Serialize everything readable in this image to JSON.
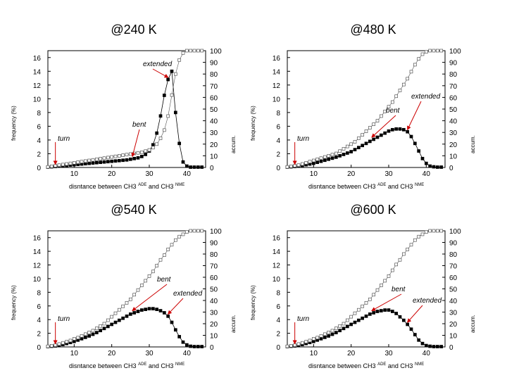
{
  "chart_data": [
    {
      "type": "line",
      "title": "@240 K",
      "xlabel": "disntance between CH3",
      "xlabel_sup1": "ADE",
      "xlabel_mid": "and CH3",
      "xlabel_sup2": "NME",
      "ylabel_left": "frequency (%)",
      "ylabel_right": "accum.",
      "xlim": [
        3,
        45
      ],
      "ylim_left": [
        0,
        17
      ],
      "ylim_right": [
        0,
        100
      ],
      "x_ticks": [
        10,
        20,
        30,
        40
      ],
      "y_left_ticks": [
        0,
        2,
        4,
        6,
        8,
        10,
        12,
        14,
        16
      ],
      "y_right_ticks": [
        0,
        10,
        20,
        30,
        40,
        50,
        60,
        70,
        80,
        90,
        100
      ],
      "series": [
        {
          "name": "frequency",
          "marker": "filled-square",
          "axis": "left",
          "x": [
            3,
            4,
            5,
            6,
            7,
            8,
            9,
            10,
            11,
            12,
            13,
            14,
            15,
            16,
            17,
            18,
            19,
            20,
            21,
            22,
            23,
            24,
            25,
            26,
            27,
            28,
            29,
            30,
            31,
            32,
            33,
            34,
            35,
            36,
            37,
            38,
            39,
            40,
            41,
            42,
            43,
            44
          ],
          "y": [
            0.05,
            0.1,
            0.15,
            0.2,
            0.25,
            0.3,
            0.35,
            0.4,
            0.45,
            0.5,
            0.55,
            0.6,
            0.65,
            0.7,
            0.75,
            0.8,
            0.85,
            0.9,
            0.95,
            1.0,
            1.05,
            1.1,
            1.2,
            1.3,
            1.4,
            1.6,
            1.9,
            2.4,
            3.3,
            5.0,
            7.5,
            10.5,
            12.8,
            14.0,
            8.0,
            3.5,
            0.8,
            0.2,
            0.05,
            0.05,
            0.05,
            0.05
          ]
        },
        {
          "name": "accumulated",
          "marker": "open-square",
          "axis": "right",
          "x": [
            3,
            4,
            5,
            6,
            7,
            8,
            9,
            10,
            11,
            12,
            13,
            14,
            15,
            16,
            17,
            18,
            19,
            20,
            21,
            22,
            23,
            24,
            25,
            26,
            27,
            28,
            29,
            30,
            31,
            32,
            33,
            34,
            35,
            36,
            37,
            38,
            39,
            40,
            41,
            42,
            43,
            44
          ],
          "y": [
            0.5,
            1,
            1.5,
            2,
            2.5,
            3,
            3.5,
            4,
            4.5,
            5,
            5.5,
            6,
            6.5,
            7,
            7.5,
            8,
            8.5,
            9,
            9.5,
            10,
            10.5,
            11,
            11.5,
            12,
            12.5,
            13,
            14,
            15,
            17,
            20,
            25,
            32,
            44,
            62,
            80,
            92,
            98,
            100,
            100,
            100,
            100,
            100
          ]
        }
      ],
      "annotations": [
        {
          "label": "turn",
          "x": 5
        },
        {
          "label": "bent",
          "x": 25.5
        },
        {
          "label": "extended",
          "x": 35
        }
      ]
    },
    {
      "type": "line",
      "title": "@480 K",
      "xlabel": "disntance between CH3",
      "xlabel_sup1": "ADE",
      "xlabel_mid": "and CH3",
      "xlabel_sup2": "NME",
      "ylabel_left": "frequency (%)",
      "ylabel_right": "accum.",
      "xlim": [
        3,
        45
      ],
      "ylim_left": [
        0,
        17
      ],
      "ylim_right": [
        0,
        100
      ],
      "x_ticks": [
        10,
        20,
        30,
        40
      ],
      "y_left_ticks": [
        0,
        2,
        4,
        6,
        8,
        10,
        12,
        14,
        16
      ],
      "y_right_ticks": [
        0,
        10,
        20,
        30,
        40,
        50,
        60,
        70,
        80,
        90,
        100
      ],
      "series": [
        {
          "name": "frequency",
          "marker": "filled-square",
          "axis": "left",
          "x": [
            3,
            4,
            5,
            6,
            7,
            8,
            9,
            10,
            11,
            12,
            13,
            14,
            15,
            16,
            17,
            18,
            19,
            20,
            21,
            22,
            23,
            24,
            25,
            26,
            27,
            28,
            29,
            30,
            31,
            32,
            33,
            34,
            35,
            36,
            37,
            38,
            39,
            40,
            41,
            42,
            43,
            44
          ],
          "y": [
            0.05,
            0.1,
            0.15,
            0.2,
            0.3,
            0.4,
            0.5,
            0.6,
            0.75,
            0.9,
            1.05,
            1.2,
            1.35,
            1.5,
            1.7,
            1.9,
            2.1,
            2.3,
            2.6,
            2.9,
            3.2,
            3.5,
            3.8,
            4.1,
            4.4,
            4.7,
            5.0,
            5.3,
            5.5,
            5.6,
            5.6,
            5.5,
            5.2,
            4.5,
            3.5,
            2.4,
            1.3,
            0.6,
            0.2,
            0.1,
            0.05,
            0.05
          ]
        },
        {
          "name": "accumulated",
          "marker": "open-square",
          "axis": "right",
          "x": [
            3,
            4,
            5,
            6,
            7,
            8,
            9,
            10,
            11,
            12,
            13,
            14,
            15,
            16,
            17,
            18,
            19,
            20,
            21,
            22,
            23,
            24,
            25,
            26,
            27,
            28,
            29,
            30,
            31,
            32,
            33,
            34,
            35,
            36,
            37,
            38,
            39,
            40,
            41,
            42,
            43,
            44
          ],
          "y": [
            0.5,
            1,
            1.5,
            2,
            3,
            4,
            5,
            6,
            7,
            8,
            9,
            10,
            11,
            12,
            14,
            16,
            18,
            20,
            22,
            25,
            28,
            31,
            34,
            37,
            40,
            44,
            48,
            52,
            56,
            61,
            66,
            71,
            76,
            82,
            88,
            93,
            97,
            99,
            100,
            100,
            100,
            100
          ]
        }
      ],
      "annotations": [
        {
          "label": "turn",
          "x": 5
        },
        {
          "label": "bent",
          "x": 25.5
        },
        {
          "label": "extended",
          "x": 35
        }
      ]
    },
    {
      "type": "line",
      "title": "@540 K",
      "xlabel": "disntance between CH3",
      "xlabel_sup1": "ADE",
      "xlabel_mid": "and CH3",
      "xlabel_sup2": "NME",
      "ylabel_left": "frequency (%)",
      "ylabel_right": "accum.",
      "xlim": [
        3,
        45
      ],
      "ylim_left": [
        0,
        17
      ],
      "ylim_right": [
        0,
        100
      ],
      "x_ticks": [
        10,
        20,
        30,
        40
      ],
      "y_left_ticks": [
        0,
        2,
        4,
        6,
        8,
        10,
        12,
        14,
        16
      ],
      "y_right_ticks": [
        0,
        10,
        20,
        30,
        40,
        50,
        60,
        70,
        80,
        90,
        100
      ],
      "series": [
        {
          "name": "frequency",
          "marker": "filled-square",
          "axis": "left",
          "x": [
            3,
            4,
            5,
            6,
            7,
            8,
            9,
            10,
            11,
            12,
            13,
            14,
            15,
            16,
            17,
            18,
            19,
            20,
            21,
            22,
            23,
            24,
            25,
            26,
            27,
            28,
            29,
            30,
            31,
            32,
            33,
            34,
            35,
            36,
            37,
            38,
            39,
            40,
            41,
            42,
            43,
            44
          ],
          "y": [
            0.05,
            0.1,
            0.15,
            0.25,
            0.35,
            0.5,
            0.65,
            0.8,
            1.0,
            1.2,
            1.4,
            1.6,
            1.85,
            2.1,
            2.4,
            2.7,
            3.0,
            3.3,
            3.6,
            3.9,
            4.2,
            4.5,
            4.8,
            5.0,
            5.2,
            5.4,
            5.5,
            5.6,
            5.6,
            5.5,
            5.3,
            5.0,
            4.5,
            3.6,
            2.5,
            1.5,
            0.7,
            0.3,
            0.1,
            0.05,
            0.05,
            0.05
          ]
        },
        {
          "name": "accumulated",
          "marker": "open-square",
          "axis": "right",
          "x": [
            3,
            4,
            5,
            6,
            7,
            8,
            9,
            10,
            11,
            12,
            13,
            14,
            15,
            16,
            17,
            18,
            19,
            20,
            21,
            22,
            23,
            24,
            25,
            26,
            27,
            28,
            29,
            30,
            31,
            32,
            33,
            34,
            35,
            36,
            37,
            38,
            39,
            40,
            41,
            42,
            43,
            44
          ],
          "y": [
            0.5,
            1,
            1.5,
            2.5,
            3.5,
            4.5,
            5.5,
            7,
            8,
            9.5,
            11,
            12.5,
            14,
            16,
            18,
            20,
            23,
            26,
            29,
            32,
            35,
            38,
            41,
            45,
            49,
            53,
            57,
            61,
            65,
            70,
            75,
            79,
            84,
            88,
            92,
            95,
            97,
            99,
            100,
            100,
            100,
            100
          ]
        }
      ],
      "annotations": [
        {
          "label": "turn",
          "x": 5
        },
        {
          "label": "bent",
          "x": 25.5
        },
        {
          "label": "extended",
          "x": 35
        }
      ]
    },
    {
      "type": "line",
      "title": "@600 K",
      "xlabel": "disntance between CH3",
      "xlabel_sup1": "ADE",
      "xlabel_mid": "and CH3",
      "xlabel_sup2": "NME",
      "ylabel_left": "frequency (%)",
      "ylabel_right": "accum.",
      "xlim": [
        3,
        45
      ],
      "ylim_left": [
        0,
        17
      ],
      "ylim_right": [
        0,
        100
      ],
      "x_ticks": [
        10,
        20,
        30,
        40
      ],
      "y_left_ticks": [
        0,
        2,
        4,
        6,
        8,
        10,
        12,
        14,
        16
      ],
      "y_right_ticks": [
        0,
        10,
        20,
        30,
        40,
        50,
        60,
        70,
        80,
        90,
        100
      ],
      "series": [
        {
          "name": "frequency",
          "marker": "filled-square",
          "axis": "left",
          "x": [
            3,
            4,
            5,
            6,
            7,
            8,
            9,
            10,
            11,
            12,
            13,
            14,
            15,
            16,
            17,
            18,
            19,
            20,
            21,
            22,
            23,
            24,
            25,
            26,
            27,
            28,
            29,
            30,
            31,
            32,
            33,
            34,
            35,
            36,
            37,
            38,
            39,
            40,
            41,
            42,
            43,
            44
          ],
          "y": [
            0.05,
            0.1,
            0.15,
            0.25,
            0.35,
            0.5,
            0.65,
            0.8,
            1.0,
            1.2,
            1.4,
            1.6,
            1.85,
            2.1,
            2.4,
            2.7,
            3.0,
            3.3,
            3.6,
            3.9,
            4.2,
            4.5,
            4.8,
            5.0,
            5.2,
            5.3,
            5.4,
            5.4,
            5.2,
            4.9,
            4.4,
            3.9,
            3.3,
            2.6,
            1.8,
            1.0,
            0.5,
            0.2,
            0.1,
            0.05,
            0.05,
            0.05
          ]
        },
        {
          "name": "accumulated",
          "marker": "open-square",
          "axis": "right",
          "x": [
            3,
            4,
            5,
            6,
            7,
            8,
            9,
            10,
            11,
            12,
            13,
            14,
            15,
            16,
            17,
            18,
            19,
            20,
            21,
            22,
            23,
            24,
            25,
            26,
            27,
            28,
            29,
            30,
            31,
            32,
            33,
            34,
            35,
            36,
            37,
            38,
            39,
            40,
            41,
            42,
            43,
            44
          ],
          "y": [
            0.5,
            1,
            1.5,
            2.5,
            3.5,
            4.5,
            5.5,
            7,
            8,
            9.5,
            11,
            12.5,
            14,
            16,
            18,
            20,
            23,
            26,
            29,
            32,
            35,
            38,
            41,
            45,
            49,
            53,
            57,
            61,
            66,
            71,
            75,
            80,
            84,
            88,
            92,
            95,
            97,
            99,
            100,
            100,
            100,
            100
          ]
        }
      ],
      "annotations": [
        {
          "label": "turn",
          "x": 5
        },
        {
          "label": "bent",
          "x": 25.5
        },
        {
          "label": "extended",
          "x": 35
        }
      ]
    }
  ],
  "colors": {
    "arrow": "#cc0000",
    "axis": "#000000",
    "open_marker": "#555555"
  }
}
